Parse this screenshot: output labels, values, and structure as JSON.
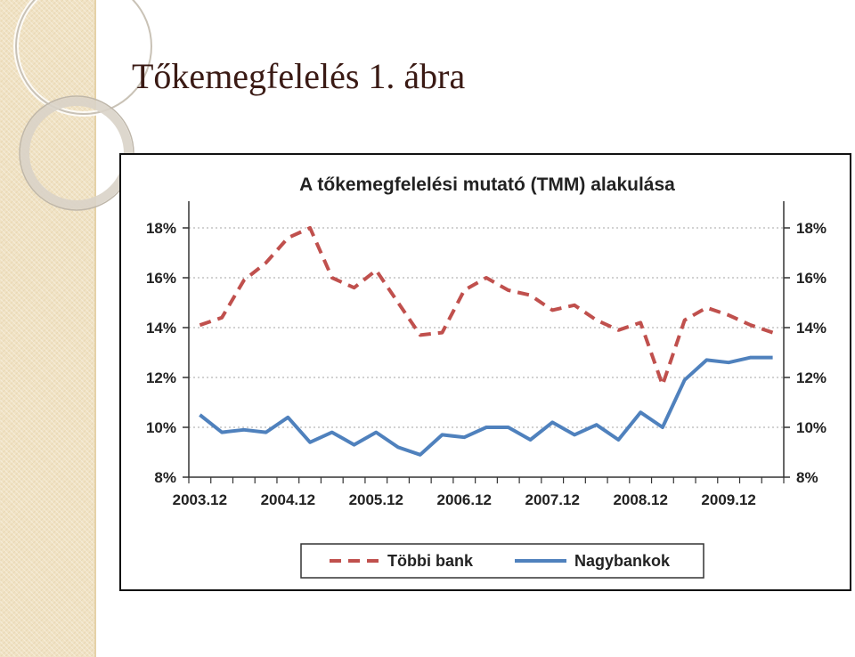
{
  "slide": {
    "title": "Tőkemegfelelés 1. ábra"
  },
  "chart_data": {
    "type": "line",
    "title": "A tőkemegfelelési mutató (TMM) alakulása",
    "xlabel": "",
    "ylabel": "",
    "x": [
      "2003.12",
      "2004.03",
      "2004.06",
      "2004.09",
      "2004.12",
      "2005.03",
      "2005.06",
      "2005.09",
      "2005.12",
      "2006.03",
      "2006.06",
      "2006.09",
      "2006.12",
      "2007.03",
      "2007.06",
      "2007.09",
      "2007.12",
      "2008.03",
      "2008.06",
      "2008.09",
      "2008.12",
      "2009.03",
      "2009.06",
      "2009.09",
      "2009.12",
      "2010.03",
      "2010.06"
    ],
    "x_tick_labels": [
      "2003.12",
      "2004.12",
      "2005.12",
      "2006.12",
      "2007.12",
      "2008.12",
      "2009.12"
    ],
    "y_tick_labels": [
      "18%",
      "16%",
      "14%",
      "12%",
      "10%",
      "8%"
    ],
    "ylim": [
      8,
      18
    ],
    "y_unit": "%",
    "dual_axis_labels": true,
    "grid": "horizontal dotted",
    "legend_position": "bottom",
    "series": [
      {
        "name": "Többi bank",
        "color": "#c0504d",
        "style": "dashed",
        "values": [
          14.1,
          14.4,
          15.9,
          16.6,
          17.6,
          18.0,
          16.0,
          15.6,
          16.3,
          15.0,
          13.7,
          13.8,
          15.5,
          16.0,
          15.5,
          15.3,
          14.7,
          14.9,
          14.3,
          13.9,
          14.2,
          11.7,
          14.3,
          14.8,
          14.5,
          14.1,
          13.8
        ]
      },
      {
        "name": "Nagybankok",
        "color": "#4f81bd",
        "style": "solid",
        "values": [
          10.5,
          9.8,
          9.9,
          9.8,
          10.4,
          9.4,
          9.8,
          9.3,
          9.8,
          9.2,
          8.9,
          9.7,
          9.6,
          10.0,
          10.0,
          9.5,
          10.2,
          9.7,
          10.1,
          9.5,
          10.6,
          10.0,
          11.9,
          12.7,
          12.6,
          12.8,
          12.8
        ]
      }
    ]
  },
  "colors": {
    "title_text": "#3a1a14",
    "accent_strip": "#f0e2c4"
  }
}
